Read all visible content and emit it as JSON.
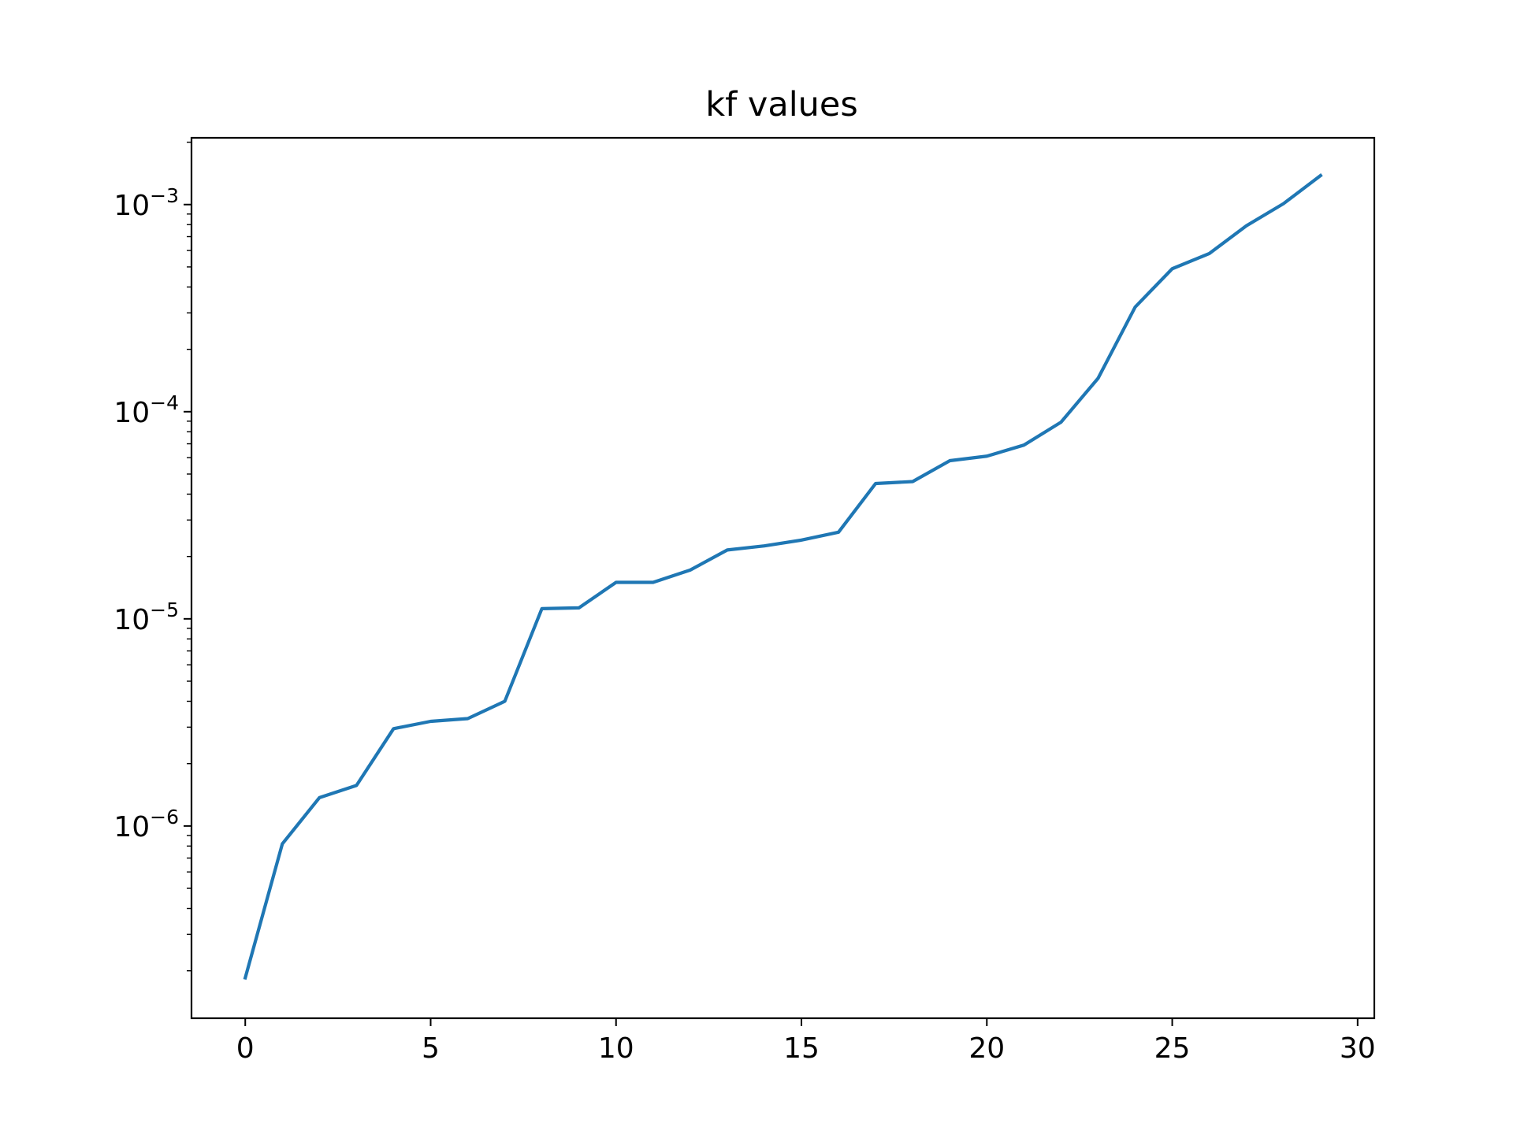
{
  "chart_data": {
    "type": "line",
    "title": "kf values",
    "xlabel": "",
    "ylabel": "",
    "xlim": [
      -1.45,
      30.45
    ],
    "ylim": [
      1.18e-07,
      0.0021
    ],
    "y_scale": "log",
    "grid": false,
    "x_ticks": [
      0,
      5,
      10,
      15,
      20,
      25,
      30
    ],
    "x_tick_labels": [
      "0",
      "5",
      "10",
      "15",
      "20",
      "25",
      "30"
    ],
    "y_ticks": [
      {
        "value": 1e-06,
        "base": "10",
        "exponent": "−6"
      },
      {
        "value": 1e-05,
        "base": "10",
        "exponent": "−5"
      },
      {
        "value": 0.0001,
        "base": "10",
        "exponent": "−4"
      },
      {
        "value": 0.001,
        "base": "10",
        "exponent": "−3"
      }
    ],
    "series": [
      {
        "color": "#1f77b4",
        "x": [
          0,
          1,
          2,
          3,
          4,
          5,
          6,
          7,
          8,
          9,
          10,
          11,
          12,
          13,
          14,
          15,
          16,
          17,
          18,
          19,
          20,
          21,
          22,
          23,
          24,
          25,
          26,
          27,
          28,
          29
        ],
        "y": [
          1.85e-07,
          8.2e-07,
          1.37e-06,
          1.57e-06,
          2.95e-06,
          3.2e-06,
          3.3e-06,
          4e-06,
          1.12e-05,
          1.13e-05,
          1.5e-05,
          1.5e-05,
          1.72e-05,
          2.15e-05,
          2.25e-05,
          2.4e-05,
          2.62e-05,
          4.5e-05,
          4.6e-05,
          5.8e-05,
          6.1e-05,
          6.9e-05,
          8.9e-05,
          0.000145,
          0.00032,
          0.00049,
          0.00058,
          0.00079,
          0.00101,
          0.00138
        ]
      }
    ]
  }
}
